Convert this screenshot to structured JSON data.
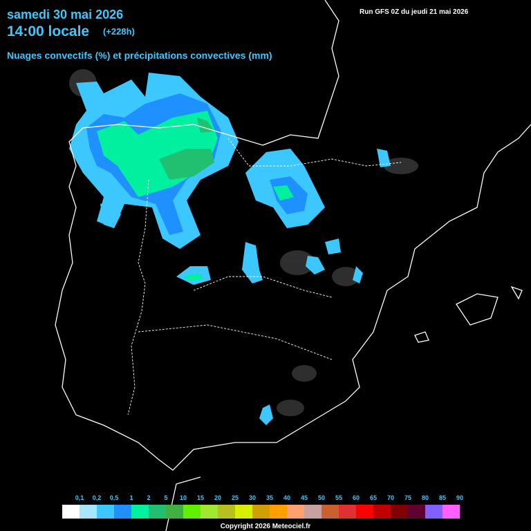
{
  "title_date": "samedi 30 mai 2026",
  "title_time": "14:00 locale",
  "lead": "(+228h)",
  "run": "Run GFS 0Z du jeudi 21 mai 2026",
  "subtitle": "Nuages convectifs (%) et précipitations convectives (mm)",
  "copyright": "Copyright 2026 Meteociel.fr",
  "legend": [
    {
      "label": "0,1",
      "color": "#ffffff"
    },
    {
      "label": "0,2",
      "color": "#a8e6ff"
    },
    {
      "label": "0,5",
      "color": "#3cc8ff"
    },
    {
      "label": "1",
      "color": "#1e90ff"
    },
    {
      "label": "2",
      "color": "#00f0a0"
    },
    {
      "label": "5",
      "color": "#20c070"
    },
    {
      "label": "10",
      "color": "#40b040"
    },
    {
      "label": "15",
      "color": "#60f000"
    },
    {
      "label": "20",
      "color": "#a0e830"
    },
    {
      "label": "25",
      "color": "#b8c020"
    },
    {
      "label": "30",
      "color": "#d8f000"
    },
    {
      "label": "35",
      "color": "#d0a000"
    },
    {
      "label": "40",
      "color": "#ffa000"
    },
    {
      "label": "45",
      "color": "#ffa070"
    },
    {
      "label": "50",
      "color": "#c8a0a0"
    },
    {
      "label": "55",
      "color": "#c86030"
    },
    {
      "label": "60",
      "color": "#e03030"
    },
    {
      "label": "65",
      "color": "#ff0000"
    },
    {
      "label": "70",
      "color": "#c00000"
    },
    {
      "label": "75",
      "color": "#800000"
    },
    {
      "label": "80",
      "color": "#600030"
    },
    {
      "label": "85",
      "color": "#8060ff"
    },
    {
      "label": "90",
      "color": "#ff60ff"
    }
  ]
}
